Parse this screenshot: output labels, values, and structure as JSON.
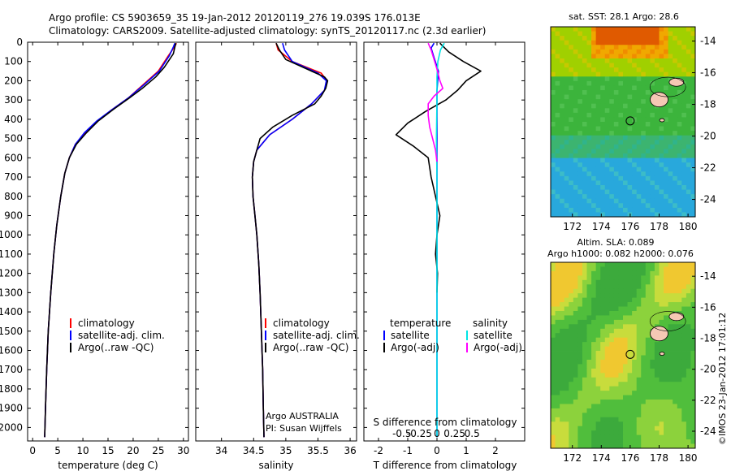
{
  "header": {
    "line1": "Argo profile: CS 5903659_35 19-Jan-2012 20120119_276 19.039S 176.013E",
    "line2": "Climatology: CARS2009. Satellite-adjusted climatology: synTS_20120117.nc (2.3d earlier)"
  },
  "depth_ticks": [
    "0",
    "100",
    "200",
    "300",
    "400",
    "500",
    "600",
    "700",
    "800",
    "900",
    "1000",
    "1100",
    "1200",
    "1300",
    "1400",
    "1500",
    "1600",
    "1700",
    "1800",
    "1900",
    "2000"
  ],
  "colors": {
    "climatology": "#ff0000",
    "satellite": "#0000ff",
    "argo": "#000000",
    "sal_satellite": "#00e5e5",
    "sal_argo": "#ff00ff"
  },
  "chart_data": [
    {
      "type": "line",
      "id": "temperature",
      "xlabel": "temperature (deg C)",
      "ylabel": "",
      "xlim": [
        -1,
        31
      ],
      "ylim": [
        2070,
        0
      ],
      "xticks": [
        "0",
        "5",
        "10",
        "15",
        "20",
        "25",
        "30"
      ],
      "xtick_values": [
        0,
        5,
        10,
        15,
        20,
        25,
        30
      ],
      "legend": [
        "climatology",
        "satellite-adj. clim.",
        "Argo(..raw -QC)"
      ],
      "series": [
        {
          "name": "climatology",
          "color": "#ff0000",
          "points": [
            [
              28.6,
              5
            ],
            [
              28.2,
              25
            ],
            [
              27,
              70
            ],
            [
              25,
              150
            ],
            [
              22,
              220
            ],
            [
              19,
              290
            ],
            [
              15.8,
              350
            ],
            [
              12.8,
              410
            ],
            [
              10.5,
              470
            ],
            [
              8.5,
              530
            ],
            [
              7.3,
              600
            ],
            [
              6.4,
              680
            ],
            [
              5.6,
              800
            ],
            [
              4.8,
              950
            ],
            [
              4.2,
              1100
            ],
            [
              3.6,
              1300
            ],
            [
              3.1,
              1500
            ],
            [
              2.8,
              1700
            ],
            [
              2.55,
              1900
            ],
            [
              2.4,
              2050
            ]
          ]
        },
        {
          "name": "satellite-adj. clim.",
          "color": "#0000ff",
          "points": [
            [
              28.3,
              5
            ],
            [
              28,
              25
            ],
            [
              27.2,
              70
            ],
            [
              25.2,
              150
            ],
            [
              22.2,
              220
            ],
            [
              19,
              290
            ],
            [
              15.8,
              350
            ],
            [
              12.7,
              410
            ],
            [
              10.3,
              470
            ],
            [
              8.5,
              530
            ],
            [
              7.3,
              600
            ],
            [
              6.4,
              680
            ],
            [
              5.6,
              800
            ],
            [
              4.8,
              950
            ],
            [
              4.2,
              1100
            ],
            [
              3.6,
              1300
            ],
            [
              3.1,
              1500
            ],
            [
              2.8,
              1700
            ],
            [
              2.55,
              1900
            ],
            [
              2.4,
              2050
            ]
          ]
        },
        {
          "name": "Argo(..raw -QC)",
          "color": "#000000",
          "points": [
            [
              28.5,
              5
            ],
            [
              28.3,
              25
            ],
            [
              28,
              60
            ],
            [
              26.2,
              130
            ],
            [
              24.5,
              180
            ],
            [
              21.8,
              240
            ],
            [
              19.2,
              290
            ],
            [
              16,
              350
            ],
            [
              13,
              410
            ],
            [
              10.7,
              470
            ],
            [
              8.7,
              530
            ],
            [
              7.3,
              600
            ],
            [
              6.4,
              680
            ],
            [
              5.6,
              800
            ],
            [
              4.8,
              950
            ],
            [
              4.2,
              1100
            ],
            [
              3.6,
              1300
            ],
            [
              3.1,
              1500
            ],
            [
              2.8,
              1700
            ],
            [
              2.55,
              1900
            ],
            [
              2.4,
              2050
            ]
          ]
        }
      ]
    },
    {
      "type": "line",
      "id": "salinity",
      "xlabel": "salinity",
      "ylabel": "",
      "xlim": [
        33.6,
        36.1
      ],
      "ylim": [
        2070,
        0
      ],
      "xticks": [
        "34",
        "34.5",
        "35",
        "35.5",
        "36"
      ],
      "xtick_values": [
        34,
        34.5,
        35,
        35.5,
        36
      ],
      "legend": [
        "climatology",
        "satellite-adj. clim.",
        "Argo(..raw -QC)"
      ],
      "annotation": [
        "Argo AUSTRALIA",
        "PI: Susan Wijffels"
      ],
      "series": [
        {
          "name": "climatology",
          "color": "#ff0000",
          "points": [
            [
              34.85,
              5
            ],
            [
              34.88,
              40
            ],
            [
              35.1,
              100
            ],
            [
              35.55,
              160
            ],
            [
              35.64,
              200
            ],
            [
              35.6,
              250
            ],
            [
              35.4,
              320
            ],
            [
              35.1,
              400
            ],
            [
              34.75,
              480
            ],
            [
              34.55,
              560
            ],
            [
              34.5,
              620
            ],
            [
              34.48,
              700
            ],
            [
              34.49,
              800
            ],
            [
              34.52,
              900
            ],
            [
              34.55,
              1000
            ],
            [
              34.58,
              1150
            ],
            [
              34.6,
              1300
            ],
            [
              34.62,
              1500
            ],
            [
              34.64,
              1700
            ],
            [
              34.65,
              1900
            ],
            [
              34.66,
              2050
            ]
          ]
        },
        {
          "name": "satellite-adj. clim.",
          "color": "#0000ff",
          "points": [
            [
              34.95,
              5
            ],
            [
              34.98,
              40
            ],
            [
              35.1,
              100
            ],
            [
              35.5,
              160
            ],
            [
              35.63,
              200
            ],
            [
              35.6,
              250
            ],
            [
              35.4,
              320
            ],
            [
              35.1,
              400
            ],
            [
              34.75,
              480
            ],
            [
              34.55,
              560
            ],
            [
              34.5,
              620
            ],
            [
              34.48,
              700
            ],
            [
              34.49,
              800
            ],
            [
              34.52,
              900
            ],
            [
              34.55,
              1000
            ],
            [
              34.58,
              1150
            ],
            [
              34.6,
              1300
            ],
            [
              34.62,
              1500
            ],
            [
              34.64,
              1700
            ],
            [
              34.65,
              1900
            ],
            [
              34.66,
              2050
            ]
          ]
        },
        {
          "name": "Argo(..raw -QC)",
          "color": "#000000",
          "points": [
            [
              34.85,
              5
            ],
            [
              34.9,
              40
            ],
            [
              35.0,
              90
            ],
            [
              35.4,
              150
            ],
            [
              35.6,
              180
            ],
            [
              35.65,
              200
            ],
            [
              35.62,
              240
            ],
            [
              35.55,
              280
            ],
            [
              35.45,
              320
            ],
            [
              35.1,
              380
            ],
            [
              34.8,
              440
            ],
            [
              34.6,
              500
            ],
            [
              34.55,
              560
            ],
            [
              34.5,
              620
            ],
            [
              34.48,
              700
            ],
            [
              34.49,
              800
            ],
            [
              34.52,
              900
            ],
            [
              34.55,
              1000
            ],
            [
              34.58,
              1150
            ],
            [
              34.6,
              1300
            ],
            [
              34.62,
              1500
            ],
            [
              34.64,
              1700
            ],
            [
              34.65,
              1900
            ],
            [
              34.66,
              2050
            ]
          ]
        }
      ]
    },
    {
      "type": "line",
      "id": "differences",
      "xlabel": "T difference from climatology",
      "xlabel_top": "S difference from climatology",
      "xlim": [
        -2.5,
        3
      ],
      "ylim": [
        2070,
        0
      ],
      "xticks": [
        "-2",
        "-1",
        "0",
        "1",
        "2"
      ],
      "xtick_values": [
        -2,
        -1,
        0,
        1,
        2
      ],
      "sticks": [
        "-0.5",
        "-0.25",
        "0",
        "0.25",
        "0.5"
      ],
      "stick_values": [
        -0.5,
        -0.25,
        0,
        0.25,
        0.5
      ],
      "stick_scale": 2.4,
      "legend_titles": [
        "temperature",
        "salinity"
      ],
      "legend": [
        "satellite",
        "Argo(-adj)",
        "satellite",
        "Argo(-adj)"
      ],
      "series": [
        {
          "name": "T satellite",
          "color": "#0000ff",
          "points": [
            [
              -0.1,
              5
            ],
            [
              -0.2,
              30
            ],
            [
              -0.1,
              80
            ],
            [
              0.05,
              150
            ],
            [
              0,
              250
            ],
            [
              0,
              400
            ],
            [
              0,
              600
            ],
            [
              0,
              800
            ],
            [
              0,
              1000
            ],
            [
              0,
              1200
            ],
            [
              0,
              1500
            ],
            [
              0,
              2050
            ]
          ]
        },
        {
          "name": "T Argo(-adj)",
          "color": "#000000",
          "points": [
            [
              0.1,
              5
            ],
            [
              0.4,
              50
            ],
            [
              0.9,
              100
            ],
            [
              1.5,
              150
            ],
            [
              1.0,
              200
            ],
            [
              0.7,
              250
            ],
            [
              0.3,
              300
            ],
            [
              -0.4,
              360
            ],
            [
              -1.0,
              420
            ],
            [
              -1.4,
              480
            ],
            [
              -0.8,
              540
            ],
            [
              -0.3,
              600
            ],
            [
              -0.2,
              700
            ],
            [
              -0.05,
              800
            ],
            [
              0.1,
              900
            ],
            [
              0,
              1000
            ],
            [
              -0.05,
              1100
            ],
            [
              0.02,
              1200
            ],
            [
              0,
              1300
            ]
          ]
        },
        {
          "name": "S satellite",
          "color": "#00e5e5",
          "points": [
            [
              0.25,
              5
            ],
            [
              0.12,
              40
            ],
            [
              0.03,
              100
            ],
            [
              0,
              180
            ],
            [
              0,
              300
            ],
            [
              -0.02,
              500
            ],
            [
              0,
              700
            ],
            [
              0,
              1000
            ],
            [
              0,
              1400
            ],
            [
              0,
              2050
            ]
          ]
        },
        {
          "name": "S Argo(-adj)",
          "color": "#ff00ff",
          "points": [
            [
              -0.3,
              5
            ],
            [
              -0.2,
              40
            ],
            [
              -0.1,
              90
            ],
            [
              0,
              140
            ],
            [
              0.1,
              200
            ],
            [
              0.2,
              240
            ],
            [
              -0.1,
              280
            ],
            [
              -0.3,
              320
            ],
            [
              -0.3,
              380
            ],
            [
              -0.25,
              440
            ],
            [
              -0.15,
              500
            ],
            [
              -0.05,
              560
            ],
            [
              0,
              620
            ]
          ]
        }
      ]
    }
  ],
  "maps": {
    "sst": {
      "title": "sat. SST: 28.1  Argo: 28.6",
      "lat_ticks": [
        "-14",
        "-16",
        "-18",
        "-20",
        "-22",
        "-24"
      ],
      "lon_ticks": [
        "172",
        "174",
        "176",
        "178",
        "180"
      ],
      "float_lon": 176,
      "float_lat": -19.04
    },
    "sla": {
      "title1": "Altim. SLA: 0.089",
      "title2": "Argo h1000: 0.082  h2000: 0.076",
      "lat_ticks": [
        "-14",
        "-16",
        "-18",
        "-20",
        "-22",
        "-24"
      ],
      "lon_ticks": [
        "172",
        "174",
        "176",
        "178",
        "180"
      ],
      "float_lon": 176,
      "float_lat": -19.04
    }
  },
  "footer": "©IMOS 23-Jan-2012 17:01:12"
}
